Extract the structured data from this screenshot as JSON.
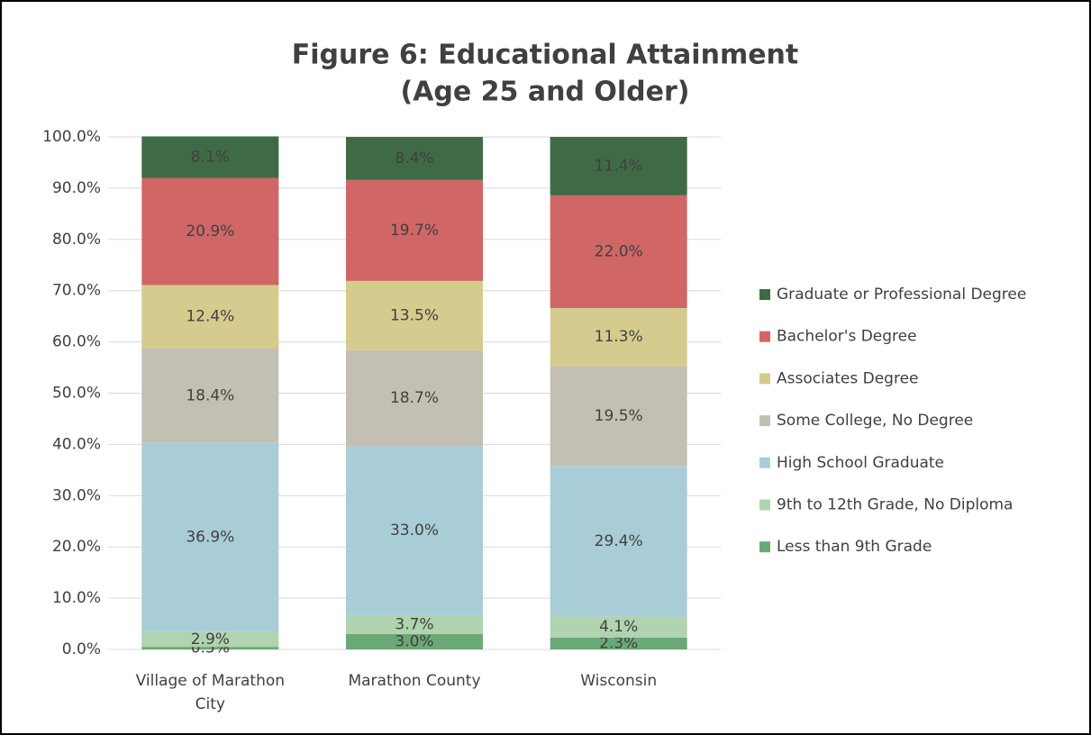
{
  "chart_data": {
    "type": "stacked_bar",
    "title": [
      "Figure 6:  Educational Attainment",
      "(Age 25 and Older)"
    ],
    "categories": [
      "Village of Marathon City",
      "Marathon County",
      "Wisconsin"
    ],
    "series": [
      {
        "name": "Less than 9th Grade",
        "color": "#6aa975",
        "values": [
          0.5,
          3.0,
          2.3
        ],
        "value_labels": [
          "0.5%",
          "3.0%",
          "2.3%"
        ]
      },
      {
        "name": "9th to 12th Grade, No Diploma",
        "color": "#b0d3b0",
        "values": [
          2.9,
          3.7,
          4.1
        ],
        "value_labels": [
          "2.9%",
          "3.7%",
          "4.1%"
        ]
      },
      {
        "name": "High School Graduate",
        "color": "#a9cdd7",
        "values": [
          36.9,
          33.0,
          29.4
        ],
        "value_labels": [
          "36.9%",
          "33.0%",
          "29.4%"
        ]
      },
      {
        "name": "Some College, No Degree",
        "color": "#c3c0b3",
        "values": [
          18.4,
          18.7,
          19.5
        ],
        "value_labels": [
          "18.4%",
          "18.7%",
          "19.5%"
        ]
      },
      {
        "name": "Associates Degree",
        "color": "#d6cb8f",
        "values": [
          12.4,
          13.5,
          11.3
        ],
        "value_labels": [
          "12.4%",
          "13.5%",
          "11.3%"
        ]
      },
      {
        "name": "Bachelor's Degree",
        "color": "#d06666",
        "values": [
          20.9,
          19.7,
          22.0
        ],
        "value_labels": [
          "20.9%",
          "19.7%",
          "22.0%"
        ]
      },
      {
        "name": "Graduate or Professional Degree",
        "color": "#3e6b45",
        "values": [
          8.1,
          8.4,
          11.4
        ],
        "value_labels": [
          "8.1%",
          "8.4%",
          "11.4%"
        ]
      }
    ],
    "ylim": [
      0,
      100
    ],
    "yticks": [
      {
        "value": 0,
        "label": "0.0%"
      },
      {
        "value": 10,
        "label": "10.0%"
      },
      {
        "value": 20,
        "label": "20.0%"
      },
      {
        "value": 30,
        "label": "30.0%"
      },
      {
        "value": 40,
        "label": "40.0%"
      },
      {
        "value": 50,
        "label": "50.0%"
      },
      {
        "value": 60,
        "label": "60.0%"
      },
      {
        "value": 70,
        "label": "70.0%"
      },
      {
        "value": 80,
        "label": "80.0%"
      },
      {
        "value": 90,
        "label": "90.0%"
      },
      {
        "value": 100,
        "label": "100.0%"
      }
    ],
    "grid": true,
    "legend": "right"
  }
}
